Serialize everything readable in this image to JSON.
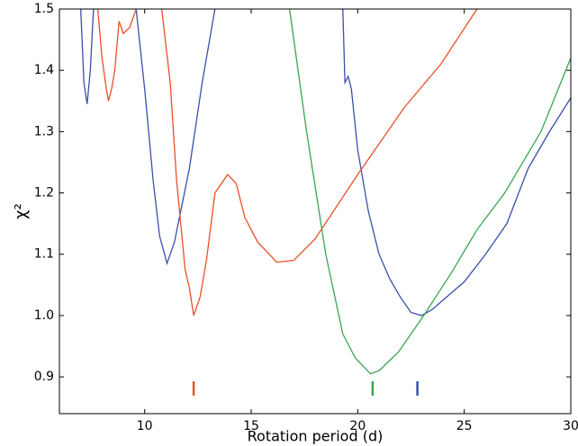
{
  "chart_data": {
    "type": "line",
    "x_label": "Rotation period (d)",
    "y_label": "χ²",
    "xlim": [
      6,
      30
    ],
    "ylim": [
      0.84,
      1.5
    ],
    "xticks": [
      10,
      15,
      20,
      25,
      30
    ],
    "yticks": [
      0.9,
      {
        "value": 1,
        "label": "1.0"
      },
      1.1,
      1.2,
      1.3,
      1.4,
      1.5
    ],
    "series": [
      {
        "color": "#3a4fa8",
        "x": [
          7.0,
          7.15,
          7.3,
          7.45,
          7.6,
          8.5,
          9.6,
          10.0,
          10.4,
          10.7,
          11.05,
          11.4,
          12.1,
          12.7,
          13.3,
          16.0,
          19.3,
          19.4,
          19.55,
          19.7,
          20.0,
          20.5,
          21.0,
          21.5,
          22.0,
          22.5,
          23.0,
          23.5,
          24.0,
          25.0,
          26.0,
          27.0,
          28.0,
          29.0,
          30.0
        ],
        "values": [
          1.5,
          1.38,
          1.345,
          1.4,
          1.5,
          null,
          1.5,
          1.37,
          1.22,
          1.13,
          1.085,
          1.12,
          1.24,
          1.38,
          1.5,
          null,
          1.5,
          1.38,
          1.39,
          1.37,
          1.27,
          1.17,
          1.1,
          1.06,
          1.03,
          1.005,
          1.0,
          1.01,
          1.025,
          1.055,
          1.1,
          1.15,
          1.24,
          1.3,
          1.355
        ]
      },
      {
        "color": "#e8502a",
        "x": [
          7.8,
          8.0,
          8.2,
          8.3,
          8.45,
          8.6,
          8.8,
          9.0,
          9.3,
          9.6,
          10.3,
          10.8,
          11.2,
          11.5,
          11.9,
          12.1,
          12.3,
          12.6,
          12.9,
          13.3,
          13.9,
          14.3,
          14.7,
          15.3,
          16.2,
          17.0,
          18.0,
          20.0,
          22.2,
          23.9,
          25.6
        ],
        "values": [
          1.5,
          1.42,
          1.37,
          1.35,
          1.37,
          1.4,
          1.48,
          1.46,
          1.47,
          1.5,
          null,
          1.5,
          1.38,
          1.22,
          1.075,
          1.045,
          1.0,
          1.03,
          1.09,
          1.2,
          1.23,
          1.215,
          1.16,
          1.12,
          1.087,
          1.09,
          1.125,
          1.23,
          1.34,
          1.41,
          1.5
        ]
      },
      {
        "color": "#3aa552",
        "x": [
          16.8,
          17.6,
          18.5,
          19.3,
          19.9,
          20.6,
          21.0,
          21.9,
          23.1,
          24.4,
          25.6,
          26.9,
          28.6,
          30.0
        ],
        "values": [
          1.5,
          1.3,
          1.1,
          0.97,
          0.93,
          0.905,
          0.91,
          0.94,
          1.0,
          1.07,
          1.14,
          1.2,
          1.3,
          1.42
        ]
      }
    ],
    "markers": {
      "x": [
        12.3,
        20.7,
        22.8
      ],
      "colors": [
        "#e8502a",
        "#3aa552",
        "#3a4fa8"
      ]
    }
  }
}
